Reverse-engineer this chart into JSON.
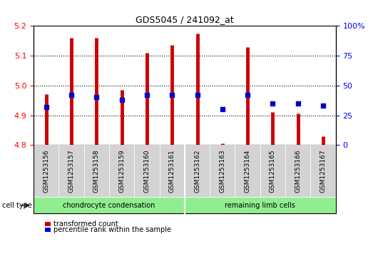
{
  "title": "GDS5045 / 241092_at",
  "samples": [
    "GSM1253156",
    "GSM1253157",
    "GSM1253158",
    "GSM1253159",
    "GSM1253160",
    "GSM1253161",
    "GSM1253162",
    "GSM1253163",
    "GSM1253164",
    "GSM1253165",
    "GSM1253166",
    "GSM1253167"
  ],
  "transformed_count": [
    4.97,
    5.16,
    5.16,
    4.985,
    5.11,
    5.135,
    5.175,
    4.805,
    5.13,
    4.91,
    4.905,
    4.83
  ],
  "percentile_rank": [
    32,
    42,
    40,
    38,
    42,
    42,
    42,
    30,
    42,
    35,
    35,
    33
  ],
  "base_value": 4.8,
  "ylim_left": [
    4.8,
    5.2
  ],
  "ylim_right": [
    0,
    100
  ],
  "yticks_left": [
    4.8,
    4.9,
    5.0,
    5.1,
    5.2
  ],
  "yticks_right": [
    0,
    25,
    50,
    75,
    100
  ],
  "ytick_labels_right": [
    "0",
    "25",
    "50",
    "75",
    "100%"
  ],
  "grid_values": [
    4.9,
    5.0,
    5.1
  ],
  "group_labels": [
    "chondrocyte condensation",
    "remaining limb cells"
  ],
  "group_starts": [
    0,
    6
  ],
  "group_ends": [
    6,
    12
  ],
  "group_color": "#90EE90",
  "bar_color": "#CC0000",
  "dot_color": "#0000CC",
  "cell_type_label": "cell type",
  "legend_items": [
    "transformed count",
    "percentile rank within the sample"
  ],
  "plot_bg_color": "#ffffff",
  "tick_area_color": "#d3d3d3"
}
